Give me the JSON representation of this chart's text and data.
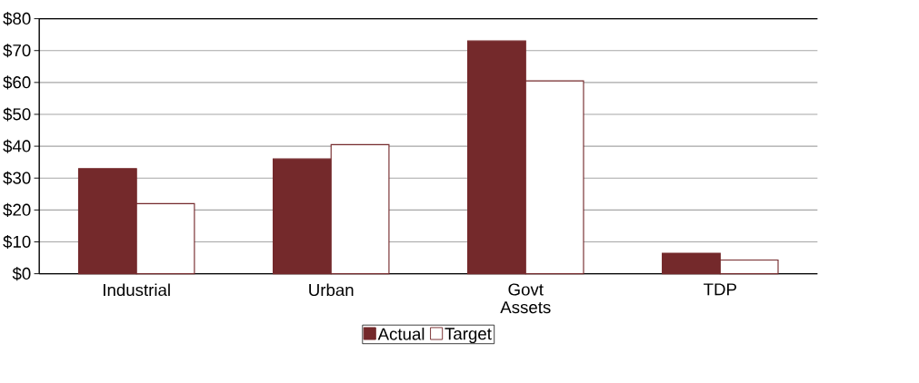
{
  "chart_data": {
    "type": "bar",
    "categories": [
      "Industrial",
      "Urban",
      "Govt Assets",
      "TDP"
    ],
    "series": [
      {
        "name": "Actual",
        "color": "#74292b",
        "values": [
          33,
          36,
          73,
          6.4
        ]
      },
      {
        "name": "Target",
        "color": "#ffffff",
        "values": [
          22,
          40.5,
          60.5,
          4.3
        ]
      }
    ],
    "ylim": [
      0,
      80
    ],
    "yticks": [
      {
        "value": 0,
        "label": "$0"
      },
      {
        "value": 10,
        "label": "$10"
      },
      {
        "value": 20,
        "label": "$20"
      },
      {
        "value": 30,
        "label": "$30"
      },
      {
        "value": 40,
        "label": "$40"
      },
      {
        "value": 50,
        "label": "$50"
      },
      {
        "value": 60,
        "label": "$60"
      },
      {
        "value": 70,
        "label": "$70"
      },
      {
        "value": 80,
        "label": "$80"
      }
    ],
    "grid": "y",
    "legend": "bottom"
  }
}
